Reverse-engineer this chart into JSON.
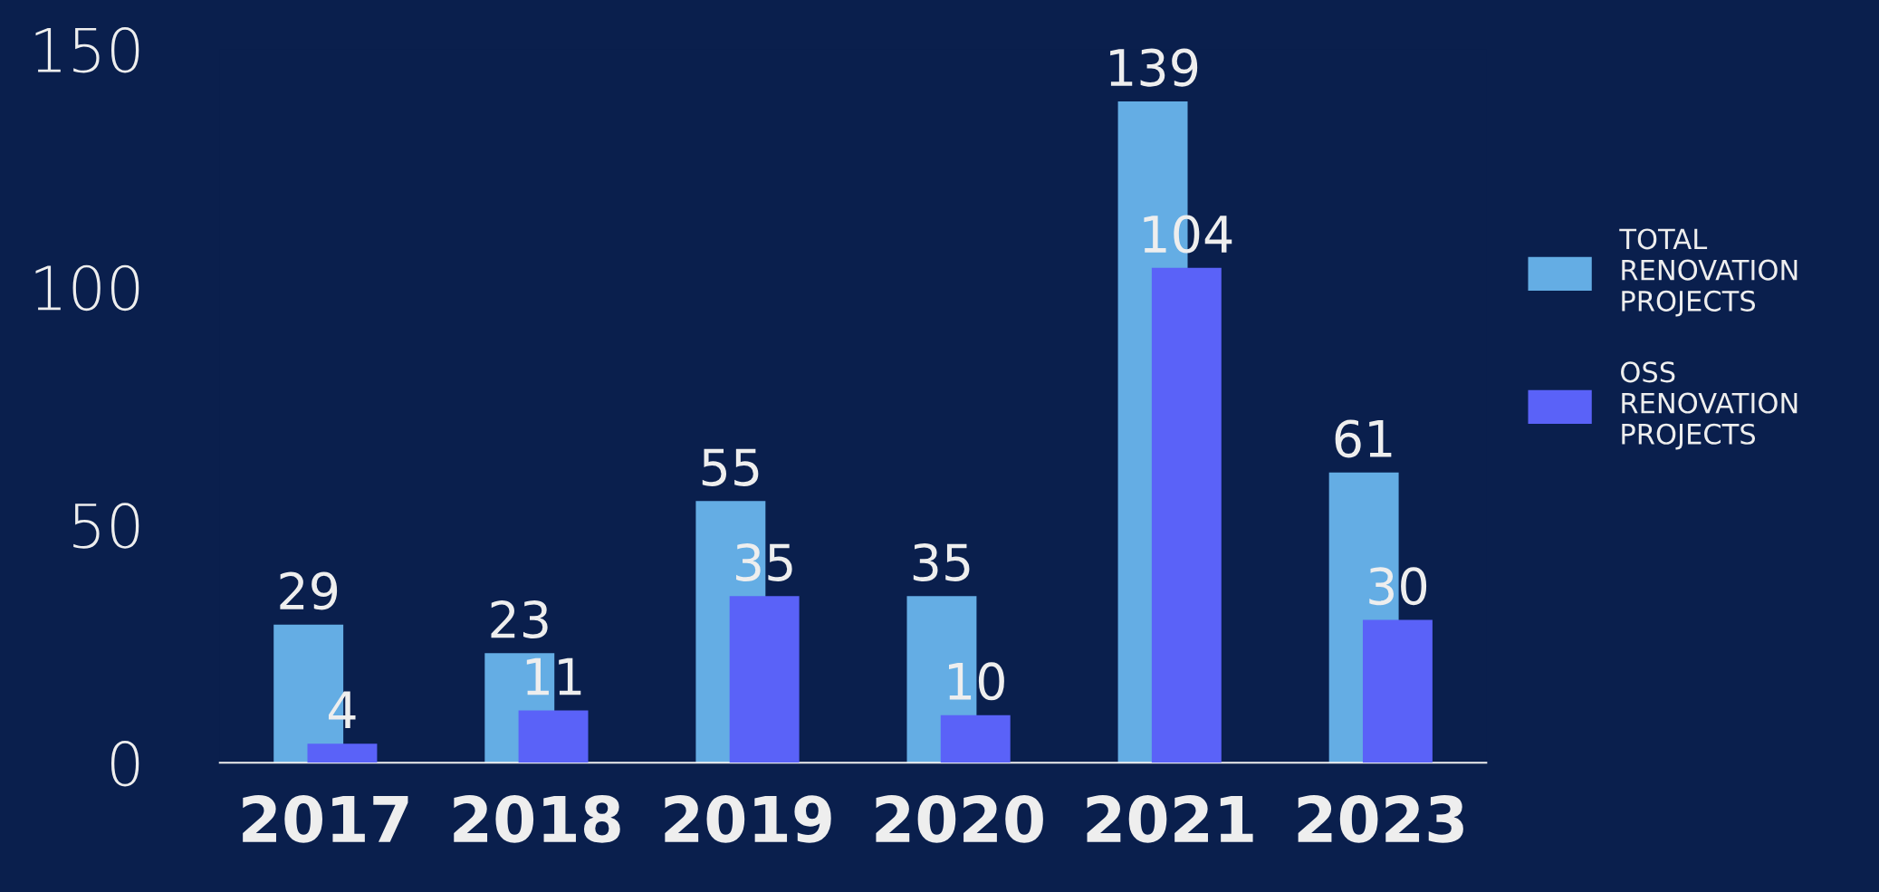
{
  "chart_data": {
    "type": "bar",
    "categories": [
      "2017",
      "2018",
      "2019",
      "2020",
      "2021",
      "2023"
    ],
    "series": [
      {
        "name": "TOTAL RENOVATION PROJECTS",
        "color": "#64ade4",
        "values": [
          29,
          23,
          55,
          35,
          139,
          61
        ]
      },
      {
        "name": "OSS RENOVATION PROJECTS",
        "color": "#5a62f8",
        "values": [
          4,
          11,
          35,
          10,
          104,
          30
        ]
      }
    ],
    "ylim": [
      0,
      150
    ],
    "yticks": [
      0,
      50,
      100,
      150
    ],
    "data_labels": true,
    "grid": false,
    "legend": "right"
  }
}
